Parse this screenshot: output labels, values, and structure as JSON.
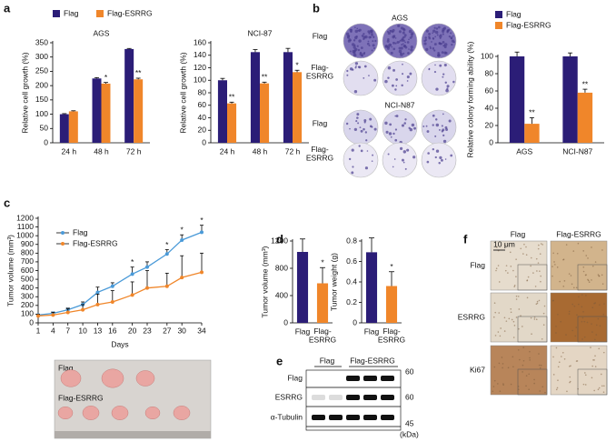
{
  "chart_data": [
    {
      "type": "bar",
      "title": "AGS",
      "ylabel": "Relative cell growth (%)",
      "categories": [
        "24 h",
        "48 h",
        "72 h"
      ],
      "series": [
        {
          "name": "Flag",
          "color": "#2b1d77",
          "values": [
            100,
            225,
            328
          ],
          "errors": [
            2,
            3,
            2
          ]
        },
        {
          "name": "Flag-ESRRG",
          "color": "#f0862a",
          "values": [
            110,
            207,
            222
          ],
          "errors": [
            2,
            4,
            4
          ],
          "significance": [
            null,
            "*",
            "**"
          ]
        }
      ],
      "ylim": [
        0,
        350
      ],
      "yticks": [
        0,
        50,
        100,
        150,
        200,
        250,
        300,
        350
      ],
      "legend": "top"
    },
    {
      "type": "bar",
      "title": "NCI-87",
      "ylabel": "Relative cell growth (%)",
      "categories": [
        "24 h",
        "48 h",
        "72 h"
      ],
      "series": [
        {
          "color": "#2b1d77",
          "values": [
            100,
            145,
            145
          ],
          "errors": [
            3,
            4,
            6
          ]
        },
        {
          "color": "#f0862a",
          "values": [
            63,
            95,
            113
          ],
          "errors": [
            2,
            2,
            3
          ],
          "significance": [
            "**",
            "**",
            "*"
          ]
        }
      ],
      "ylim": [
        0,
        160
      ],
      "yticks": [
        0,
        20,
        40,
        60,
        80,
        100,
        120,
        140,
        160
      ]
    },
    {
      "type": "bar",
      "ylabel": "Relative colony forming ability (%)",
      "categories": [
        "AGS",
        "NCI-N87"
      ],
      "series": [
        {
          "name": "Flag",
          "color": "#2b1d77",
          "values": [
            100,
            100
          ],
          "errors": [
            5,
            4
          ]
        },
        {
          "name": "Flag-ESRRG",
          "color": "#f0862a",
          "values": [
            22,
            58
          ],
          "errors": [
            7,
            4
          ],
          "significance": [
            "**",
            "**"
          ]
        }
      ],
      "ylim": [
        0,
        100
      ],
      "yticks": [
        0,
        20,
        40,
        60,
        80,
        100
      ],
      "legend": "top"
    },
    {
      "type": "line",
      "ylabel": "Tumor volume (mm³)",
      "xlabel": "Days",
      "x": [
        1,
        4,
        7,
        10,
        13,
        16,
        20,
        23,
        27,
        30,
        34
      ],
      "series": [
        {
          "name": "Flag",
          "color": "#4a9ad8",
          "values": [
            90,
            110,
            150,
            210,
            350,
            420,
            560,
            640,
            790,
            950,
            1040
          ],
          "errors": [
            10,
            15,
            20,
            30,
            60,
            40,
            80,
            60,
            50,
            60,
            80
          ],
          "significance": [
            null,
            null,
            null,
            null,
            null,
            null,
            "*",
            null,
            "*",
            "*",
            "*"
          ]
        },
        {
          "name": "Flag-ESRRG",
          "color": "#f0862a",
          "values": [
            80,
            90,
            120,
            150,
            210,
            240,
            320,
            400,
            420,
            520,
            580
          ],
          "errors": [
            20,
            30,
            40,
            60,
            120,
            130,
            150,
            200,
            150,
            250,
            220
          ]
        }
      ],
      "xlim": [
        1,
        34
      ],
      "xticks": [
        1,
        4,
        7,
        10,
        13,
        16,
        20,
        23,
        27,
        30,
        34
      ],
      "ylim": [
        0,
        1200
      ],
      "yticks": [
        0,
        100,
        200,
        300,
        400,
        500,
        600,
        700,
        800,
        900,
        1000,
        1100,
        1200
      ],
      "legend": "upper left"
    },
    {
      "type": "bar",
      "ylabel": "Tumor volume (mm³)",
      "categories": [
        "Flag",
        "Flag-\nESRRG"
      ],
      "values": [
        1040,
        580
      ],
      "errors": [
        190,
        230
      ],
      "colors": [
        "#2b1d77",
        "#f0862a"
      ],
      "significance": [
        null,
        "*"
      ],
      "ylim": [
        0,
        1200
      ],
      "yticks": [
        0,
        400,
        800,
        1200
      ]
    },
    {
      "type": "bar",
      "ylabel": "Tumor weight (g)",
      "categories": [
        "Flag",
        "Flag-\nESRRG"
      ],
      "values": [
        0.69,
        0.36
      ],
      "errors": [
        0.14,
        0.14
      ],
      "colors": [
        "#2b1d77",
        "#f0862a"
      ],
      "significance": [
        null,
        "*"
      ],
      "ylim": [
        0,
        0.8
      ],
      "yticks": [
        0,
        0.2,
        0.4,
        0.6,
        0.8
      ]
    }
  ],
  "figure": {
    "panel_labels": [
      "a",
      "b",
      "c",
      "d",
      "e",
      "f"
    ],
    "colony": {
      "lines": [
        "AGS",
        "NCI-N87"
      ],
      "rows": [
        "Flag",
        "Flag-\nESRRG",
        "Flag",
        "Flag-\nESRRG"
      ]
    },
    "tumor_photo": {
      "labels": [
        "Flag",
        "Flag-ESRRG"
      ]
    },
    "blot": {
      "groups": [
        "Flag",
        "Flag-ESRRG"
      ],
      "rows": [
        "Flag",
        "ESRRG",
        "α-Tubulin"
      ],
      "markers": [
        "60",
        "60",
        "45"
      ],
      "unit": "(kDa)"
    },
    "ihc": {
      "columns": [
        "Flag",
        "Flag-ESRRG"
      ],
      "rows": [
        "Flag",
        "ESRRG",
        "Ki67"
      ],
      "scale": "10 μm"
    }
  }
}
